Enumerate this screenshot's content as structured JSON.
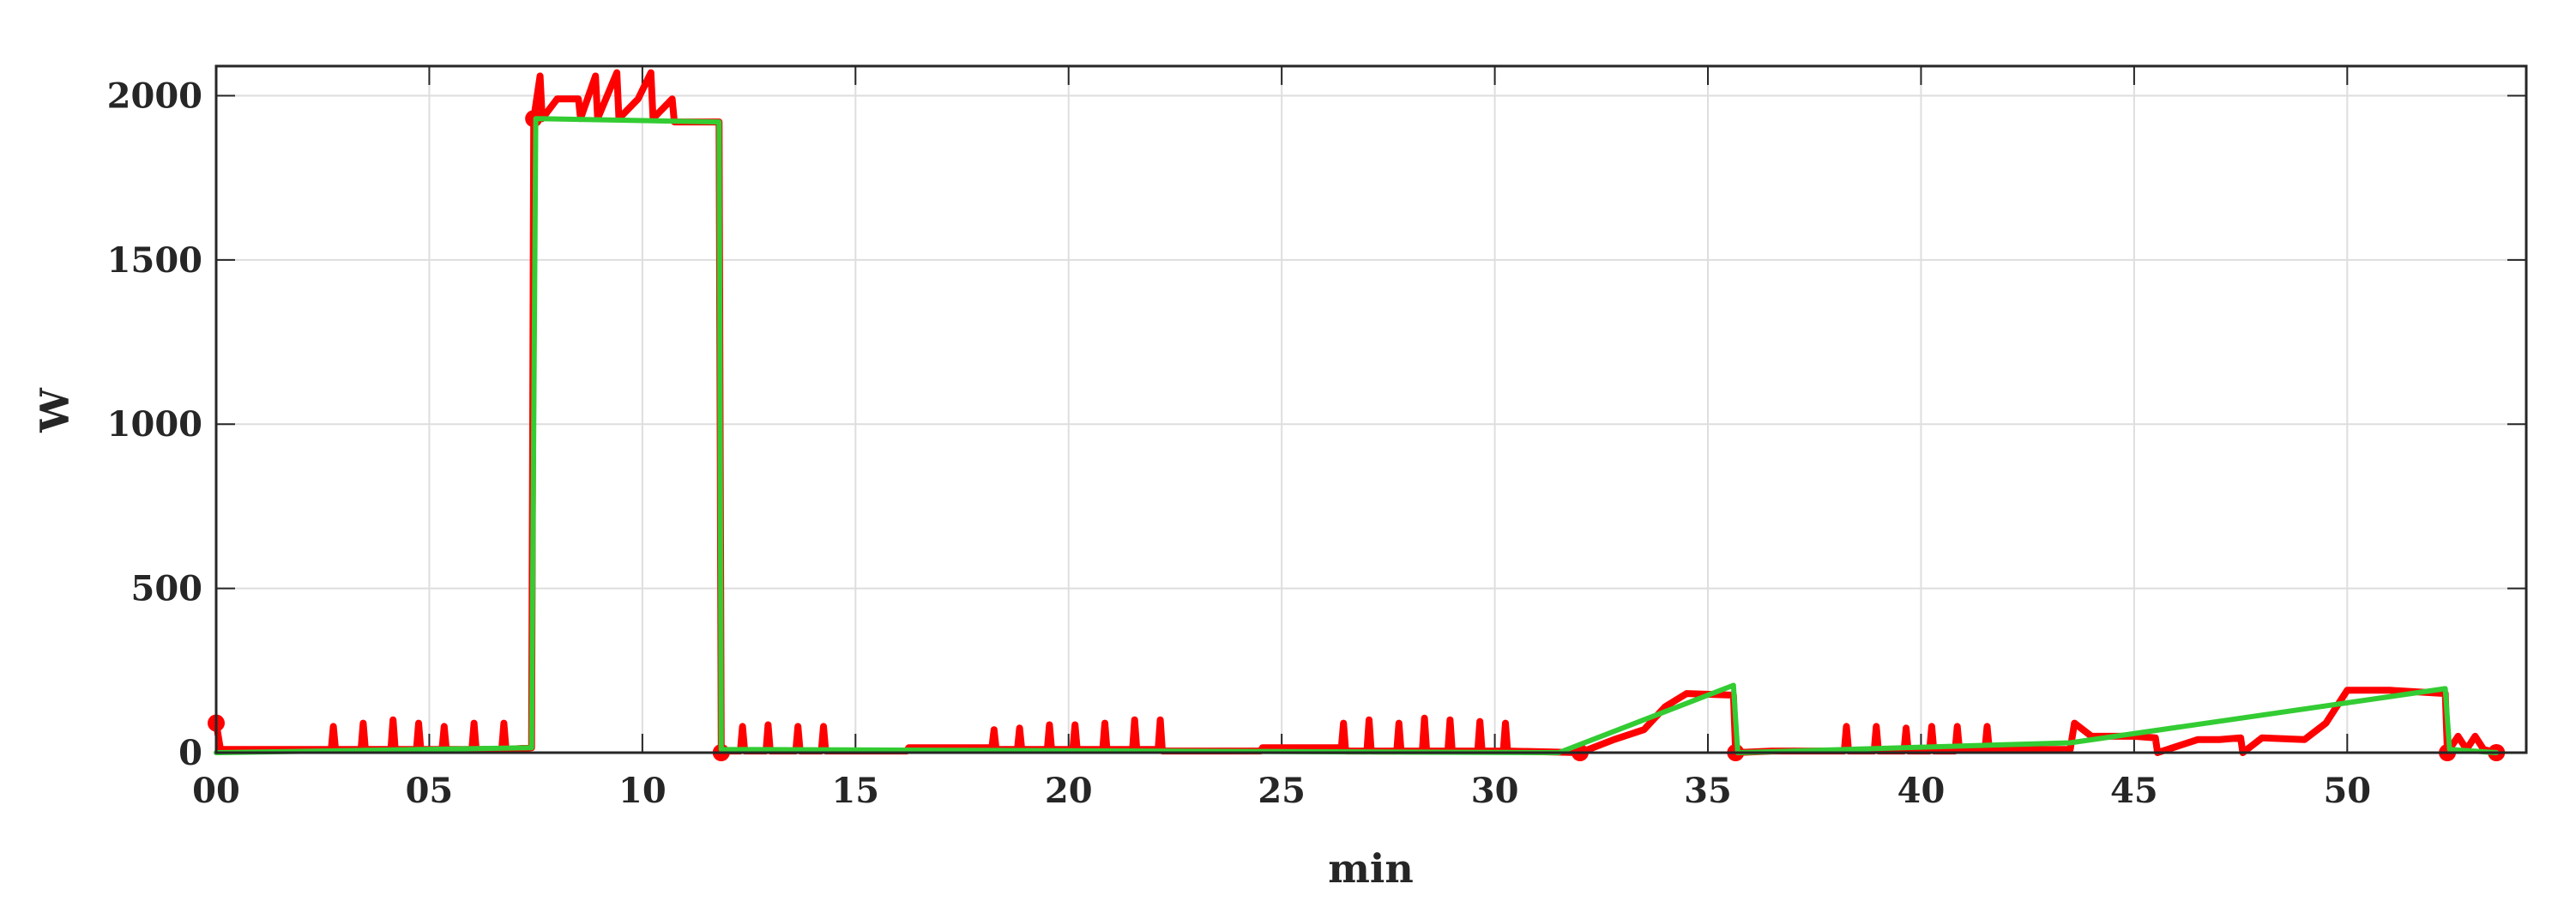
{
  "chart_data": {
    "type": "line",
    "xlabel": "min",
    "ylabel": "W",
    "xlim": [
      0,
      54.2
    ],
    "ylim": [
      0,
      2090
    ],
    "xticks": [
      {
        "value": 0,
        "label": "00"
      },
      {
        "value": 5,
        "label": "05"
      },
      10,
      15,
      20,
      25,
      30,
      35,
      40,
      45,
      50
    ],
    "yticks": [
      0,
      500,
      1000,
      1500,
      2000
    ],
    "grid": true,
    "series": [
      {
        "style": "line",
        "color": "#ff0000",
        "x": [
          0,
          0.1,
          2.7,
          2.75,
          2.8,
          3.4,
          3.45,
          3.5,
          4.1,
          4.15,
          4.2,
          4.7,
          4.75,
          4.8,
          5.3,
          5.35,
          5.4,
          6.0,
          6.05,
          6.1,
          6.7,
          6.75,
          6.8,
          7.4,
          7.45,
          7.6,
          7.65,
          8.0,
          8.5,
          8.55,
          8.9,
          8.95,
          9.4,
          9.45,
          9.9,
          10.2,
          10.25,
          10.7,
          10.75,
          11.8,
          11.85,
          12.3,
          12.35,
          12.4,
          12.9,
          12.95,
          13.0,
          13.6,
          13.65,
          13.7,
          14.2,
          14.25,
          14.3,
          16.2,
          16.25,
          18.2,
          18.25,
          18.3,
          18.8,
          18.85,
          18.9,
          19.5,
          19.55,
          19.6,
          20.1,
          20.15,
          20.2,
          20.8,
          20.85,
          20.9,
          21.5,
          21.55,
          21.6,
          22.1,
          22.15,
          22.2,
          24.5,
          24.55,
          26.4,
          26.45,
          26.5,
          27.0,
          27.05,
          27.1,
          27.7,
          27.75,
          27.8,
          28.3,
          28.35,
          28.4,
          28.9,
          28.95,
          29.0,
          29.6,
          29.65,
          29.7,
          30.2,
          30.25,
          30.3,
          32.0,
          32.8,
          33.5,
          34.0,
          34.5,
          35.6,
          35.65,
          36.5,
          38.2,
          38.25,
          38.3,
          38.9,
          38.95,
          39.0,
          39.6,
          39.65,
          39.7,
          40.2,
          40.25,
          40.3,
          40.8,
          40.85,
          40.9,
          41.5,
          41.55,
          41.6,
          43.5,
          43.6,
          44.0,
          45.0,
          45.5,
          45.55,
          46.5,
          47.0,
          47.5,
          47.55,
          48.0,
          49.0,
          49.5,
          50.0,
          51.0,
          52.3,
          52.35,
          52.6,
          52.8,
          53.0,
          53.2,
          53.5
        ],
        "values": [
          90,
          10,
          10,
          80,
          10,
          10,
          90,
          10,
          10,
          100,
          10,
          10,
          90,
          10,
          10,
          80,
          10,
          10,
          90,
          10,
          10,
          90,
          10,
          15,
          1930,
          2060,
          1930,
          1990,
          1990,
          1930,
          2060,
          1930,
          2070,
          1930,
          1990,
          2070,
          1930,
          1990,
          1920,
          1920,
          5,
          5,
          80,
          5,
          5,
          85,
          5,
          5,
          80,
          5,
          5,
          80,
          5,
          5,
          15,
          15,
          70,
          10,
          10,
          75,
          10,
          10,
          85,
          10,
          10,
          85,
          10,
          10,
          90,
          10,
          10,
          100,
          10,
          10,
          100,
          5,
          5,
          15,
          15,
          90,
          5,
          5,
          100,
          5,
          5,
          90,
          5,
          5,
          105,
          5,
          5,
          100,
          5,
          5,
          95,
          5,
          5,
          90,
          5,
          0,
          40,
          70,
          140,
          180,
          175,
          0,
          5,
          5,
          80,
          5,
          5,
          80,
          5,
          5,
          75,
          5,
          5,
          80,
          5,
          5,
          80,
          10,
          10,
          80,
          10,
          10,
          90,
          50,
          50,
          45,
          0,
          40,
          40,
          45,
          0,
          45,
          40,
          90,
          190,
          190,
          180,
          0,
          50,
          10,
          50,
          10,
          0
        ]
      },
      {
        "style": "markers",
        "color": "#ff0000",
        "x": [
          0,
          7.45,
          11.85,
          32.0,
          35.65,
          52.35,
          53.5
        ],
        "values": [
          90,
          1930,
          0,
          0,
          0,
          0,
          0
        ]
      },
      {
        "style": "line",
        "color": "#33cc33",
        "x": [
          0,
          7.4,
          7.5,
          11.8,
          11.85,
          31.5,
          35.6,
          35.7,
          43.5,
          52.3,
          52.4,
          53.5
        ],
        "values": [
          0,
          15,
          1930,
          1920,
          10,
          0,
          205,
          0,
          30,
          195,
          10,
          0
        ]
      }
    ]
  }
}
